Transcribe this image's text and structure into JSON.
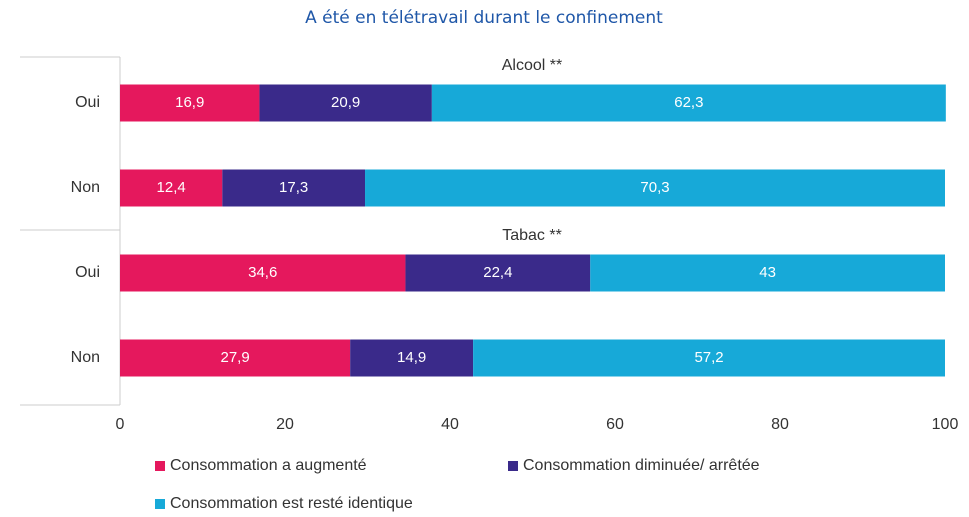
{
  "chart_data": {
    "type": "bar",
    "stacked": true,
    "orientation": "horizontal",
    "title": "A été en télétravail durant le confinement",
    "group_titles": [
      "Alcool **",
      "Tabac **"
    ],
    "categories": [
      "Oui",
      "Non",
      "Oui",
      "Non"
    ],
    "series": [
      {
        "name": "Consommation a augmenté",
        "color": "#e5185d",
        "values": [
          16.9,
          12.4,
          34.6,
          27.9
        ],
        "value_labels": [
          "16,9",
          "12,4",
          "34,6",
          "27,9"
        ]
      },
      {
        "name": "Consommation diminuée/ arrêtée",
        "color": "#3a2a8a",
        "values": [
          20.9,
          17.3,
          22.4,
          14.9
        ],
        "value_labels": [
          "20,9",
          "17,3",
          "22,4",
          "14,9"
        ]
      },
      {
        "name": "Consommation est resté identique",
        "color": "#17a9d8",
        "values": [
          62.3,
          70.3,
          43,
          57.2
        ],
        "value_labels": [
          "62,3",
          "70,3",
          "43",
          "57,2"
        ]
      }
    ],
    "xlim": [
      0,
      100
    ],
    "xticks": [
      0,
      20,
      40,
      60,
      80,
      100
    ],
    "grid": false
  }
}
